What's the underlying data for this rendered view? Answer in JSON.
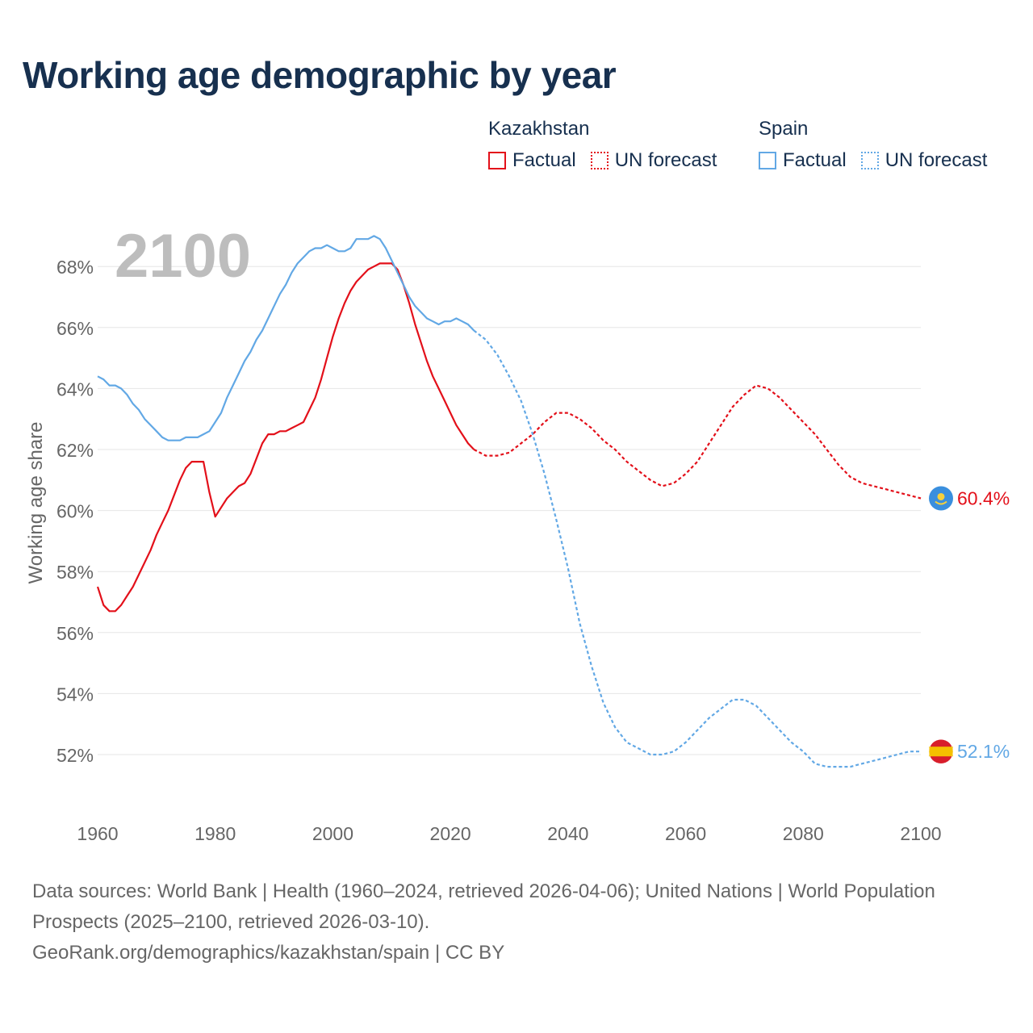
{
  "title": "Working age demographic by year",
  "year_overlay": "2100",
  "legend": {
    "groups": [
      {
        "country": "Kazakhstan",
        "factual_label": "Factual",
        "forecast_label": "UN forecast",
        "color": "#e3101a"
      },
      {
        "country": "Spain",
        "factual_label": "Factual",
        "forecast_label": "UN forecast",
        "color": "#62a8e5"
      }
    ]
  },
  "footer": {
    "line1": "Data sources: World Bank | Health (1960–2024, retrieved 2026-04-06); United Nations | World Population Prospects (2025–2100, retrieved 2026-03-10).",
    "line2": "GeoRank.org/demographics/kazakhstan/spain | CC BY"
  },
  "chart_data": {
    "type": "line",
    "title": "Working age demographic by year",
    "xlabel": "",
    "ylabel": "Working age share",
    "xlim": [
      1960,
      2100
    ],
    "ylim": [
      50.6,
      69.6
    ],
    "x_ticks": [
      1960,
      1980,
      2000,
      2020,
      2040,
      2060,
      2080,
      2100
    ],
    "y_ticks": [
      52,
      54,
      56,
      58,
      60,
      62,
      64,
      66,
      68
    ],
    "y_tick_labels": [
      "52%",
      "54%",
      "56%",
      "58%",
      "60%",
      "62%",
      "64%",
      "66%",
      "68%"
    ],
    "grid": true,
    "series": [
      {
        "name": "Kazakhstan",
        "color": "#e3101a",
        "end_label": "60.4%",
        "factual": [
          [
            1960,
            57.5
          ],
          [
            1961,
            56.9
          ],
          [
            1962,
            56.7
          ],
          [
            1963,
            56.7
          ],
          [
            1964,
            56.9
          ],
          [
            1965,
            57.2
          ],
          [
            1966,
            57.5
          ],
          [
            1967,
            57.9
          ],
          [
            1968,
            58.3
          ],
          [
            1969,
            58.7
          ],
          [
            1970,
            59.2
          ],
          [
            1971,
            59.6
          ],
          [
            1972,
            60.0
          ],
          [
            1973,
            60.5
          ],
          [
            1974,
            61.0
          ],
          [
            1975,
            61.4
          ],
          [
            1976,
            61.6
          ],
          [
            1977,
            61.6
          ],
          [
            1978,
            61.6
          ],
          [
            1979,
            60.6
          ],
          [
            1980,
            59.8
          ],
          [
            1981,
            60.1
          ],
          [
            1982,
            60.4
          ],
          [
            1983,
            60.6
          ],
          [
            1984,
            60.8
          ],
          [
            1985,
            60.9
          ],
          [
            1986,
            61.2
          ],
          [
            1987,
            61.7
          ],
          [
            1988,
            62.2
          ],
          [
            1989,
            62.5
          ],
          [
            1990,
            62.5
          ],
          [
            1991,
            62.6
          ],
          [
            1992,
            62.6
          ],
          [
            1993,
            62.7
          ],
          [
            1994,
            62.8
          ],
          [
            1995,
            62.9
          ],
          [
            1996,
            63.3
          ],
          [
            1997,
            63.7
          ],
          [
            1998,
            64.3
          ],
          [
            1999,
            65.0
          ],
          [
            2000,
            65.7
          ],
          [
            2001,
            66.3
          ],
          [
            2002,
            66.8
          ],
          [
            2003,
            67.2
          ],
          [
            2004,
            67.5
          ],
          [
            2005,
            67.7
          ],
          [
            2006,
            67.9
          ],
          [
            2007,
            68.0
          ],
          [
            2008,
            68.1
          ],
          [
            2009,
            68.1
          ],
          [
            2010,
            68.1
          ],
          [
            2011,
            67.9
          ],
          [
            2012,
            67.4
          ],
          [
            2013,
            66.8
          ],
          [
            2014,
            66.1
          ],
          [
            2015,
            65.5
          ],
          [
            2016,
            64.9
          ],
          [
            2017,
            64.4
          ],
          [
            2018,
            64.0
          ],
          [
            2019,
            63.6
          ],
          [
            2020,
            63.2
          ],
          [
            2021,
            62.8
          ],
          [
            2022,
            62.5
          ],
          [
            2023,
            62.2
          ],
          [
            2024,
            62.0
          ]
        ],
        "forecast": [
          [
            2024,
            62.0
          ],
          [
            2026,
            61.8
          ],
          [
            2028,
            61.8
          ],
          [
            2030,
            61.9
          ],
          [
            2032,
            62.2
          ],
          [
            2034,
            62.5
          ],
          [
            2036,
            62.9
          ],
          [
            2038,
            63.2
          ],
          [
            2040,
            63.2
          ],
          [
            2042,
            63.0
          ],
          [
            2044,
            62.7
          ],
          [
            2046,
            62.3
          ],
          [
            2048,
            62.0
          ],
          [
            2050,
            61.6
          ],
          [
            2052,
            61.3
          ],
          [
            2054,
            61.0
          ],
          [
            2056,
            60.8
          ],
          [
            2058,
            60.9
          ],
          [
            2060,
            61.2
          ],
          [
            2062,
            61.6
          ],
          [
            2064,
            62.2
          ],
          [
            2066,
            62.8
          ],
          [
            2068,
            63.4
          ],
          [
            2070,
            63.8
          ],
          [
            2072,
            64.1
          ],
          [
            2074,
            64.0
          ],
          [
            2076,
            63.7
          ],
          [
            2078,
            63.3
          ],
          [
            2080,
            62.9
          ],
          [
            2082,
            62.5
          ],
          [
            2084,
            62.0
          ],
          [
            2086,
            61.5
          ],
          [
            2088,
            61.1
          ],
          [
            2090,
            60.9
          ],
          [
            2092,
            60.8
          ],
          [
            2094,
            60.7
          ],
          [
            2096,
            60.6
          ],
          [
            2098,
            60.5
          ],
          [
            2100,
            60.4
          ]
        ]
      },
      {
        "name": "Spain",
        "color": "#62a8e5",
        "end_label": "52.1%",
        "factual": [
          [
            1960,
            64.4
          ],
          [
            1961,
            64.3
          ],
          [
            1962,
            64.1
          ],
          [
            1963,
            64.1
          ],
          [
            1964,
            64.0
          ],
          [
            1965,
            63.8
          ],
          [
            1966,
            63.5
          ],
          [
            1967,
            63.3
          ],
          [
            1968,
            63.0
          ],
          [
            1969,
            62.8
          ],
          [
            1970,
            62.6
          ],
          [
            1971,
            62.4
          ],
          [
            1972,
            62.3
          ],
          [
            1973,
            62.3
          ],
          [
            1974,
            62.3
          ],
          [
            1975,
            62.4
          ],
          [
            1976,
            62.4
          ],
          [
            1977,
            62.4
          ],
          [
            1978,
            62.5
          ],
          [
            1979,
            62.6
          ],
          [
            1980,
            62.9
          ],
          [
            1981,
            63.2
          ],
          [
            1982,
            63.7
          ],
          [
            1983,
            64.1
          ],
          [
            1984,
            64.5
          ],
          [
            1985,
            64.9
          ],
          [
            1986,
            65.2
          ],
          [
            1987,
            65.6
          ],
          [
            1988,
            65.9
          ],
          [
            1989,
            66.3
          ],
          [
            1990,
            66.7
          ],
          [
            1991,
            67.1
          ],
          [
            1992,
            67.4
          ],
          [
            1993,
            67.8
          ],
          [
            1994,
            68.1
          ],
          [
            1995,
            68.3
          ],
          [
            1996,
            68.5
          ],
          [
            1997,
            68.6
          ],
          [
            1998,
            68.6
          ],
          [
            1999,
            68.7
          ],
          [
            2000,
            68.6
          ],
          [
            2001,
            68.5
          ],
          [
            2002,
            68.5
          ],
          [
            2003,
            68.6
          ],
          [
            2004,
            68.9
          ],
          [
            2005,
            68.9
          ],
          [
            2006,
            68.9
          ],
          [
            2007,
            69.0
          ],
          [
            2008,
            68.9
          ],
          [
            2009,
            68.6
          ],
          [
            2010,
            68.2
          ],
          [
            2011,
            67.8
          ],
          [
            2012,
            67.4
          ],
          [
            2013,
            67.0
          ],
          [
            2014,
            66.7
          ],
          [
            2015,
            66.5
          ],
          [
            2016,
            66.3
          ],
          [
            2017,
            66.2
          ],
          [
            2018,
            66.1
          ],
          [
            2019,
            66.2
          ],
          [
            2020,
            66.2
          ],
          [
            2021,
            66.3
          ],
          [
            2022,
            66.2
          ],
          [
            2023,
            66.1
          ],
          [
            2024,
            65.9
          ]
        ],
        "forecast": [
          [
            2024,
            65.9
          ],
          [
            2026,
            65.6
          ],
          [
            2028,
            65.1
          ],
          [
            2030,
            64.4
          ],
          [
            2032,
            63.6
          ],
          [
            2034,
            62.5
          ],
          [
            2036,
            61.2
          ],
          [
            2038,
            59.7
          ],
          [
            2040,
            58.1
          ],
          [
            2042,
            56.3
          ],
          [
            2044,
            54.9
          ],
          [
            2046,
            53.7
          ],
          [
            2048,
            52.9
          ],
          [
            2050,
            52.4
          ],
          [
            2052,
            52.2
          ],
          [
            2054,
            52.0
          ],
          [
            2056,
            52.0
          ],
          [
            2058,
            52.1
          ],
          [
            2060,
            52.4
          ],
          [
            2062,
            52.8
          ],
          [
            2064,
            53.2
          ],
          [
            2066,
            53.5
          ],
          [
            2068,
            53.8
          ],
          [
            2070,
            53.8
          ],
          [
            2072,
            53.6
          ],
          [
            2074,
            53.2
          ],
          [
            2076,
            52.8
          ],
          [
            2078,
            52.4
          ],
          [
            2080,
            52.1
          ],
          [
            2082,
            51.7
          ],
          [
            2084,
            51.6
          ],
          [
            2086,
            51.6
          ],
          [
            2088,
            51.6
          ],
          [
            2090,
            51.7
          ],
          [
            2092,
            51.8
          ],
          [
            2094,
            51.9
          ],
          [
            2096,
            52.0
          ],
          [
            2098,
            52.1
          ],
          [
            2100,
            52.1
          ]
        ]
      }
    ]
  }
}
